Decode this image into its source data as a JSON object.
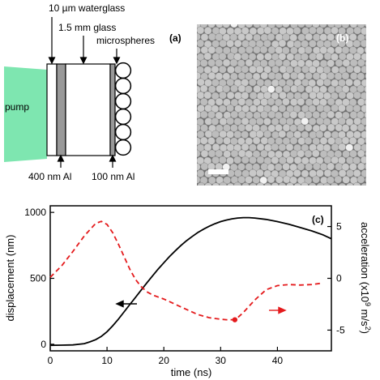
{
  "panel_a": {
    "tag": "(a)",
    "label_waterglass": "10 µm waterglass",
    "label_glass": "1.5 mm glass",
    "label_microspheres": "microspheres",
    "label_pump": "pump",
    "label_al_400": "400 nm Al",
    "label_al_100": "100 nm Al",
    "colors": {
      "pump": "#7ee6b0",
      "al_layer": "#999999",
      "sem_bg": "#6e6e6e"
    }
  },
  "panel_b": {
    "tag": "(b)"
  },
  "chart_data": {
    "type": "line",
    "tag": "(c)",
    "xlabel": "time (ns)",
    "ylabel_left": "displacement (nm)",
    "ylabel_right": "acceleration (x10",
    "ylabel_right_exp": "9",
    "ylabel_right_unit": " m/s",
    "ylabel_right_unit_exp": "2",
    "ylabel_right_close": ")",
    "xlim": [
      0,
      49.5
    ],
    "ylim_left": [
      -50,
      1050
    ],
    "ylim_right": [
      -7,
      7
    ],
    "x_ticks": [
      0,
      10,
      20,
      30,
      40
    ],
    "y_ticks_left": [
      0,
      500,
      1000
    ],
    "y_ticks_right": [
      5,
      0,
      -5
    ],
    "series": [
      {
        "axis": "left",
        "color": "#000000",
        "style": "solid",
        "x": [
          0,
          2,
          4,
          6,
          7,
          8,
          9,
          10,
          11,
          12,
          13,
          14,
          15,
          16,
          17,
          18,
          19,
          20,
          21,
          22,
          23,
          24,
          25,
          26,
          27,
          28,
          29,
          30,
          31,
          32,
          33,
          34,
          35,
          36,
          38,
          40,
          42,
          44,
          46,
          48,
          49.5
        ],
        "y": [
          -8,
          -7,
          -5,
          5,
          18,
          35,
          60,
          95,
          140,
          190,
          245,
          300,
          355,
          410,
          465,
          518,
          570,
          618,
          665,
          708,
          748,
          785,
          818,
          848,
          873,
          895,
          914,
          930,
          942,
          951,
          957,
          960,
          960,
          957,
          947,
          930,
          910,
          885,
          860,
          830,
          800
        ]
      },
      {
        "axis": "right",
        "color": "#e41a1c",
        "style": "dashed",
        "x": [
          0,
          2,
          4,
          6,
          8,
          9,
          10,
          11,
          12,
          13,
          14,
          15,
          16,
          17,
          18,
          20,
          22,
          24,
          26,
          28,
          30,
          31,
          32,
          32.5,
          33,
          34,
          35,
          36,
          37,
          38,
          40,
          42,
          44,
          46,
          48
        ],
        "y": [
          0.1,
          1.2,
          2.6,
          4.1,
          5.3,
          5.5,
          5.2,
          4.4,
          3.3,
          2.1,
          0.9,
          -0.1,
          -0.8,
          -1.3,
          -1.6,
          -2.0,
          -2.5,
          -3.0,
          -3.5,
          -3.8,
          -3.95,
          -4.0,
          -4.0,
          -3.95,
          -3.8,
          -3.3,
          -2.7,
          -2.1,
          -1.6,
          -1.1,
          -0.7,
          -0.6,
          -0.65,
          -0.6,
          -0.45
        ]
      }
    ],
    "marker": {
      "x": 32.5,
      "y": -4.0,
      "axis": "right",
      "color": "#e41a1c"
    }
  }
}
